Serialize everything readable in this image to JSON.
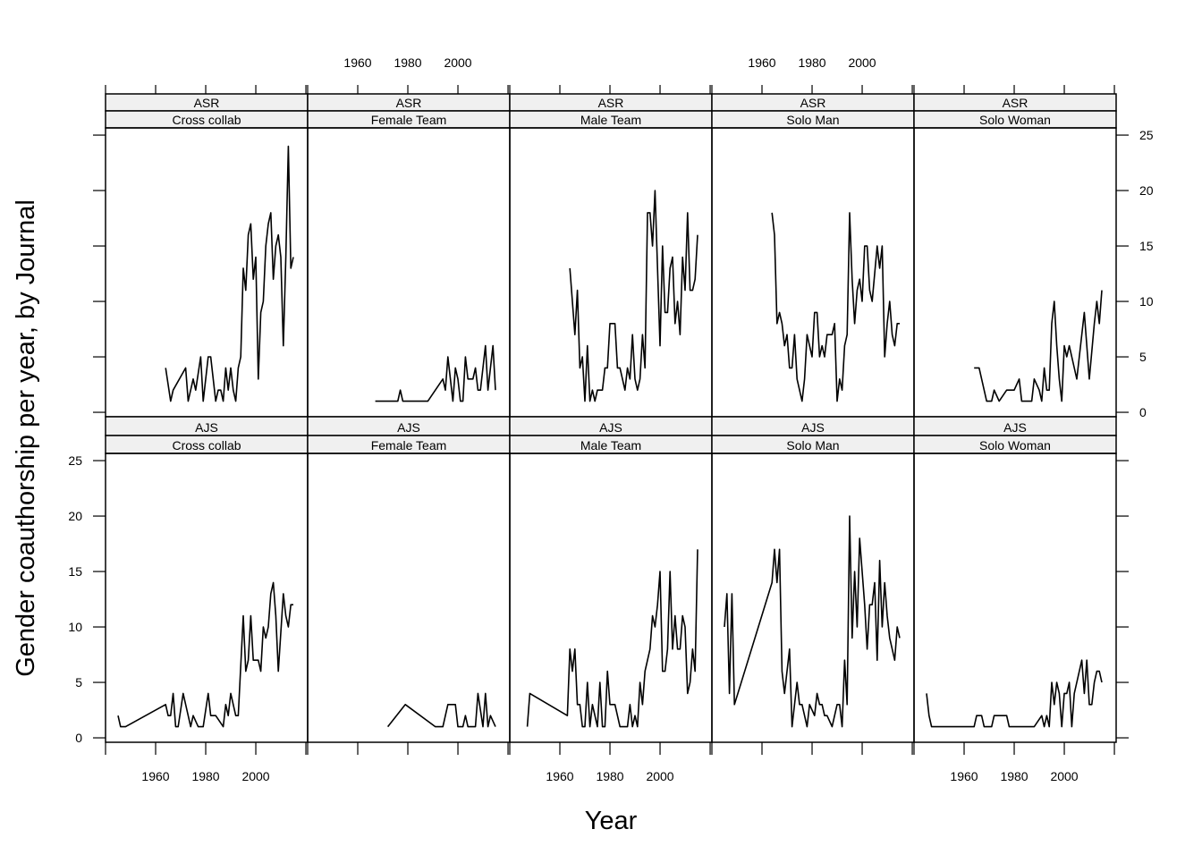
{
  "chart_data": {
    "type": "line",
    "layout": "lattice 5 columns x 2 rows",
    "xlabel": "Year",
    "ylabel": "Gender coauthorship per year, by Journal",
    "xlim": [
      1940,
      2020.7
    ],
    "ylim": [
      -0.4,
      25.65
    ],
    "x_ticks": [
      1940,
      1960,
      1980,
      2000,
      2020
    ],
    "x_tick_labels": [
      "",
      "1960",
      "1980",
      "2000",
      ""
    ],
    "y_ticks": [
      0,
      5,
      10,
      15,
      20,
      25
    ],
    "y_tick_labels": [
      "0",
      "5",
      "10",
      "15",
      "20",
      "25"
    ],
    "grid": false,
    "line_color": "#000000",
    "strip_color": "#f0f0f0",
    "panels": [
      {
        "journal": "ASR",
        "group": "Cross collab",
        "x": [
          1964,
          1966,
          1967,
          1972,
          1973,
          1975,
          1976,
          1978,
          1979,
          1981,
          1982,
          1984,
          1985,
          1986,
          1987,
          1988,
          1989,
          1990,
          1991,
          1992,
          1993,
          1994,
          1995,
          1996,
          1997,
          1998,
          1999,
          2000,
          2001,
          2002,
          2003,
          2004,
          2005,
          2006,
          2007,
          2008,
          2009,
          2010,
          2011,
          2012,
          2013,
          2014,
          2015
        ],
        "y": [
          4,
          1,
          2,
          4,
          1,
          3,
          2,
          5,
          1,
          5,
          5,
          1,
          2,
          2,
          1,
          4,
          2,
          4,
          2,
          1,
          4,
          5,
          13,
          11,
          16,
          17,
          12,
          14,
          3,
          9,
          10,
          15,
          17,
          18,
          12,
          15,
          16,
          14,
          6,
          14,
          24,
          13,
          14
        ]
      },
      {
        "journal": "ASR",
        "group": "Female Team",
        "x": [
          1967,
          1976,
          1977,
          1978,
          1988,
          1994,
          1995,
          1996,
          1998,
          1999,
          2000,
          2001,
          2002,
          2003,
          2004,
          2006,
          2007,
          2008,
          2009,
          2011,
          2012,
          2014,
          2015
        ],
        "y": [
          1,
          1,
          2,
          1,
          1,
          3,
          2,
          5,
          1,
          4,
          3,
          1,
          1,
          5,
          3,
          3,
          4,
          2,
          2,
          6,
          2,
          6,
          2
        ]
      },
      {
        "journal": "ASR",
        "group": "Male Team",
        "x": [
          1964,
          1966,
          1967,
          1968,
          1969,
          1970,
          1971,
          1972,
          1973,
          1974,
          1975,
          1977,
          1978,
          1979,
          1980,
          1982,
          1983,
          1984,
          1985,
          1986,
          1987,
          1988,
          1989,
          1990,
          1991,
          1992,
          1993,
          1994,
          1995,
          1996,
          1997,
          1998,
          2000,
          2001,
          2002,
          2003,
          2004,
          2005,
          2006,
          2007,
          2008,
          2009,
          2010,
          2011,
          2012,
          2013,
          2014,
          2015
        ],
        "y": [
          13,
          7,
          11,
          4,
          5,
          1,
          6,
          1,
          2,
          1,
          2,
          2,
          4,
          4,
          8,
          8,
          4,
          4,
          3,
          2,
          4,
          3,
          7,
          3,
          2,
          3,
          7,
          4,
          18,
          18,
          15,
          20,
          6,
          15,
          9,
          9,
          13,
          14,
          8,
          10,
          7,
          14,
          11,
          18,
          11,
          11,
          12,
          16
        ]
      },
      {
        "journal": "ASR",
        "group": "Solo Man",
        "x": [
          1964,
          1965,
          1966,
          1967,
          1968,
          1969,
          1970,
          1971,
          1972,
          1973,
          1974,
          1976,
          1977,
          1978,
          1980,
          1981,
          1982,
          1983,
          1984,
          1985,
          1986,
          1988,
          1989,
          1990,
          1991,
          1992,
          1993,
          1994,
          1995,
          1996,
          1997,
          1998,
          1999,
          2000,
          2001,
          2002,
          2003,
          2004,
          2006,
          2007,
          2008,
          2009,
          2010,
          2011,
          2012,
          2013,
          2014,
          2015
        ],
        "y": [
          18,
          16,
          8,
          9,
          8,
          6,
          7,
          4,
          4,
          7,
          3,
          1,
          3,
          7,
          5,
          9,
          9,
          5,
          6,
          5,
          7,
          7,
          8,
          1,
          3,
          2,
          6,
          7,
          18,
          12,
          8,
          11,
          12,
          10,
          15,
          15,
          11,
          10,
          15,
          13,
          15,
          5,
          8,
          10,
          7,
          6,
          8,
          8
        ]
      },
      {
        "journal": "ASR",
        "group": "Solo Woman",
        "x": [
          1964,
          1966,
          1969,
          1971,
          1972,
          1974,
          1977,
          1980,
          1982,
          1983,
          1987,
          1988,
          1990,
          1991,
          1992,
          1993,
          1994,
          1995,
          1996,
          1997,
          1998,
          1999,
          2000,
          2001,
          2002,
          2003,
          2005,
          2007,
          2008,
          2010,
          2012,
          2013,
          2014,
          2015
        ],
        "y": [
          4,
          4,
          1,
          1,
          2,
          1,
          2,
          2,
          3,
          1,
          1,
          3,
          2,
          1,
          4,
          2,
          2,
          8,
          10,
          6,
          3,
          1,
          6,
          5,
          6,
          5,
          3,
          7,
          9,
          3,
          8,
          10,
          8,
          11
        ]
      },
      {
        "journal": "AJS",
        "group": "Cross collab",
        "x": [
          1945,
          1946,
          1948,
          1964,
          1965,
          1966,
          1967,
          1968,
          1969,
          1971,
          1974,
          1975,
          1977,
          1979,
          1981,
          1982,
          1984,
          1987,
          1988,
          1989,
          1990,
          1992,
          1993,
          1995,
          1996,
          1997,
          1998,
          1999,
          2001,
          2002,
          2003,
          2004,
          2005,
          2006,
          2007,
          2008,
          2009,
          2011,
          2012,
          2013,
          2014,
          2015
        ],
        "y": [
          2,
          1,
          1,
          3,
          2,
          2,
          4,
          1,
          1,
          4,
          1,
          2,
          1,
          1,
          4,
          2,
          2,
          1,
          3,
          2,
          4,
          2,
          2,
          11,
          6,
          7,
          11,
          7,
          7,
          6,
          10,
          9,
          10,
          13,
          14,
          11,
          6,
          13,
          11,
          10,
          12,
          12
        ]
      },
      {
        "journal": "AJS",
        "group": "Female Team",
        "x": [
          1972,
          1979,
          1991,
          1994,
          1996,
          1999,
          2000,
          2002,
          2003,
          2004,
          2007,
          2008,
          2010,
          2011,
          2012,
          2013,
          2015
        ],
        "y": [
          1,
          3,
          1,
          1,
          3,
          3,
          1,
          1,
          2,
          1,
          1,
          4,
          1,
          4,
          1,
          2,
          1
        ]
      },
      {
        "journal": "AJS",
        "group": "Male Team",
        "x": [
          1947,
          1948,
          1963,
          1964,
          1965,
          1966,
          1967,
          1968,
          1969,
          1970,
          1971,
          1972,
          1973,
          1974,
          1975,
          1976,
          1977,
          1978,
          1979,
          1980,
          1982,
          1984,
          1987,
          1988,
          1989,
          1990,
          1991,
          1992,
          1993,
          1994,
          1995,
          1996,
          1997,
          1998,
          1999,
          2000,
          2001,
          2002,
          2003,
          2004,
          2005,
          2006,
          2007,
          2008,
          2009,
          2010,
          2011,
          2012,
          2013,
          2014,
          2015
        ],
        "y": [
          1,
          4,
          2,
          8,
          6,
          8,
          3,
          3,
          1,
          1,
          5,
          1,
          3,
          2,
          1,
          5,
          1,
          1,
          6,
          3,
          3,
          1,
          1,
          3,
          1,
          2,
          1,
          5,
          3,
          6,
          7,
          8,
          11,
          10,
          12,
          15,
          6,
          6,
          8,
          15,
          8,
          11,
          8,
          8,
          11,
          10,
          4,
          5,
          8,
          6,
          17
        ]
      },
      {
        "journal": "AJS",
        "group": "Solo Man",
        "x": [
          1945,
          1946,
          1947,
          1948,
          1949,
          1964,
          1965,
          1966,
          1967,
          1968,
          1969,
          1971,
          1972,
          1973,
          1974,
          1975,
          1976,
          1977,
          1978,
          1979,
          1981,
          1982,
          1983,
          1984,
          1985,
          1986,
          1988,
          1990,
          1991,
          1992,
          1993,
          1994,
          1995,
          1996,
          1997,
          1998,
          1999,
          2001,
          2002,
          2003,
          2004,
          2005,
          2006,
          2007,
          2008,
          2009,
          2010,
          2011,
          2013,
          2014,
          2015
        ],
        "y": [
          10,
          13,
          4,
          13,
          3,
          14,
          17,
          14,
          17,
          6,
          4,
          8,
          1,
          3,
          5,
          3,
          3,
          2,
          1,
          3,
          2,
          4,
          3,
          3,
          2,
          2,
          1,
          3,
          3,
          1,
          7,
          3,
          20,
          9,
          15,
          10,
          18,
          12,
          8,
          12,
          12,
          14,
          7,
          16,
          10,
          14,
          11,
          9,
          7,
          10,
          9
        ]
      },
      {
        "journal": "AJS",
        "group": "Solo Woman",
        "x": [
          1945,
          1946,
          1947,
          1964,
          1965,
          1967,
          1968,
          1971,
          1972,
          1977,
          1978,
          1988,
          1991,
          1992,
          1993,
          1994,
          1995,
          1996,
          1997,
          1998,
          1999,
          2000,
          2001,
          2002,
          2003,
          2004,
          2005,
          2007,
          2008,
          2009,
          2010,
          2011,
          2012,
          2013,
          2014,
          2015
        ],
        "y": [
          4,
          2,
          1,
          1,
          2,
          2,
          1,
          1,
          2,
          2,
          1,
          1,
          2,
          1,
          2,
          1,
          5,
          3,
          5,
          4,
          1,
          4,
          4,
          5,
          1,
          4,
          5,
          7,
          4,
          7,
          3,
          3,
          5,
          6,
          6,
          5
        ]
      }
    ]
  }
}
